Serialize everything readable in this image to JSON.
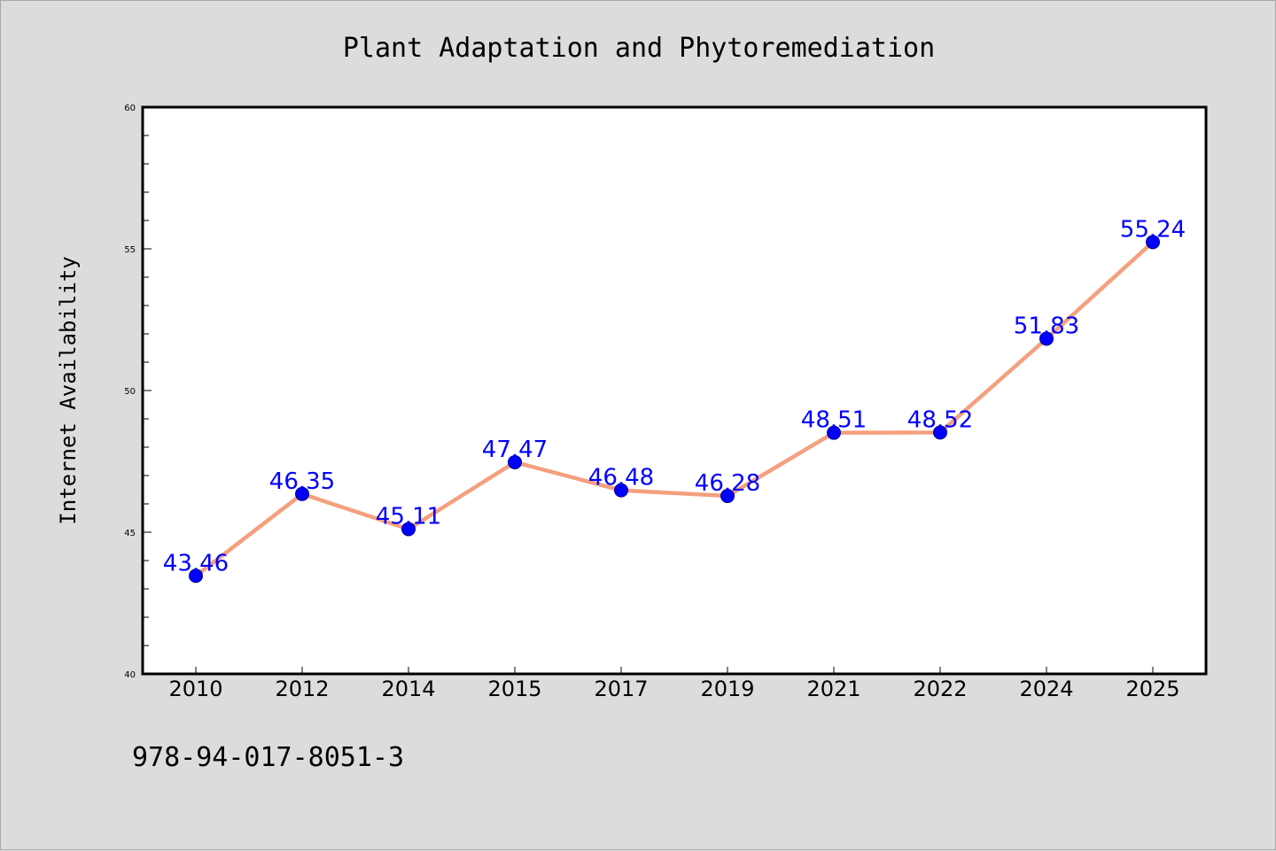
{
  "chart_data": {
    "type": "line",
    "title": "Plant Adaptation and Phytoremediation",
    "xlabel": "",
    "ylabel": "Internet Availability",
    "categories": [
      "2010",
      "2012",
      "2014",
      "2015",
      "2017",
      "2019",
      "2021",
      "2022",
      "2024",
      "2025"
    ],
    "series": [
      {
        "values": [
          43.46,
          46.35,
          45.11,
          47.47,
          46.48,
          46.28,
          48.51,
          48.52,
          51.83,
          55.24
        ],
        "line_color": "#f4a07e",
        "marker_color": "#0000ff"
      }
    ],
    "data_labels": [
      "43.46",
      "46.35",
      "45.11",
      "47.47",
      "46.48",
      "46.28",
      "48.51",
      "48.52",
      "51.83",
      "55.24"
    ],
    "ylim": [
      40,
      60
    ],
    "yticks": [
      40,
      45,
      50,
      55,
      60
    ],
    "ytick_labels": [
      "40",
      "45",
      "50",
      "55",
      "60"
    ],
    "grid": false,
    "legend": "none"
  },
  "footer": {
    "isbn": "978-94-017-8051-3"
  },
  "colors": {
    "background": "#dcdcdc",
    "plot_area": "#ffffff",
    "line": "#f4a07e",
    "marker": "#0000ff",
    "data_label": "#0000ff"
  }
}
